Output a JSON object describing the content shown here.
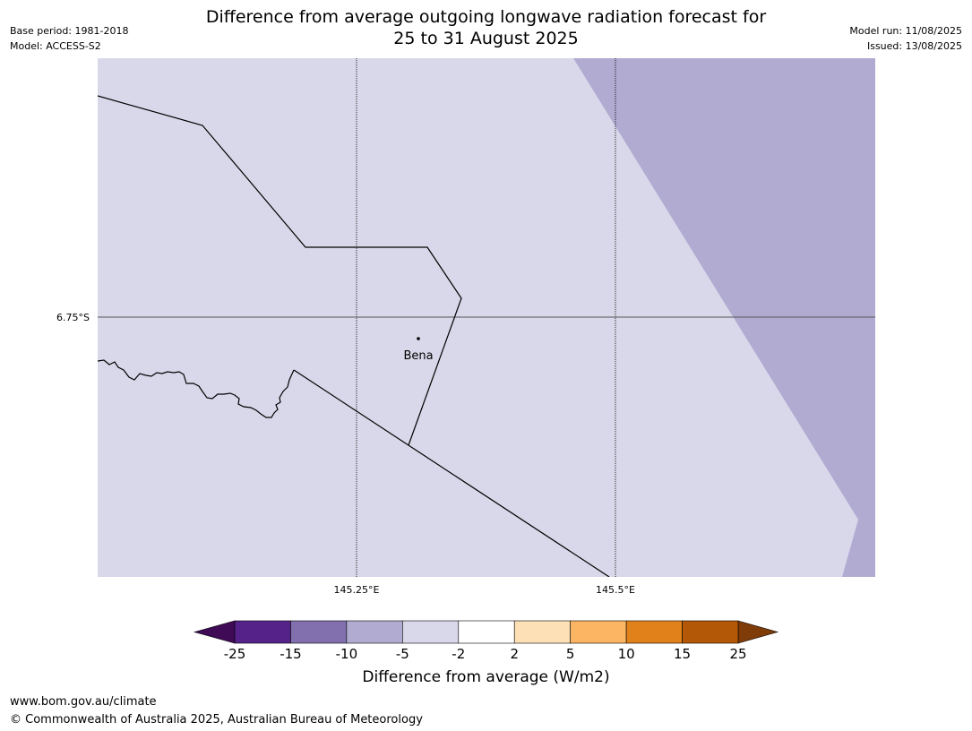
{
  "header": {
    "base_period": "Base period: 1981-2018",
    "model": "Model: ACCESS-S2",
    "model_run": "Model run: 11/08/2025",
    "issued": "Issued: 13/08/2025",
    "title_line1": "Difference from average outgoing longwave radiation forecast for",
    "title_line2": "25 to 31 August 2025"
  },
  "map": {
    "background_color": "#d8d8ea",
    "anomaly_color": "#b1abd2",
    "lat_labels": [
      "6.75°S"
    ],
    "lon_labels": [
      "145.25°E",
      "145.5°E"
    ],
    "places": [
      {
        "name": "Bena"
      }
    ]
  },
  "colorbar": {
    "label": "Difference from average (W/m2)",
    "ticks": [
      "-25",
      "-15",
      "-10",
      "-5",
      "-2",
      "2",
      "5",
      "10",
      "15",
      "25"
    ],
    "colors": [
      "#3f0a56",
      "#55228a",
      "#8270ae",
      "#b1abd2",
      "#d8d8ea",
      "#ffffff",
      "#fee0b6",
      "#fbb563",
      "#e1811a",
      "#b35806",
      "#7f3b08"
    ]
  },
  "footer": {
    "url": "www.bom.gov.au/climate",
    "copyright": "© Commonwealth of Australia 2025, Australian Bureau of Meteorology"
  }
}
